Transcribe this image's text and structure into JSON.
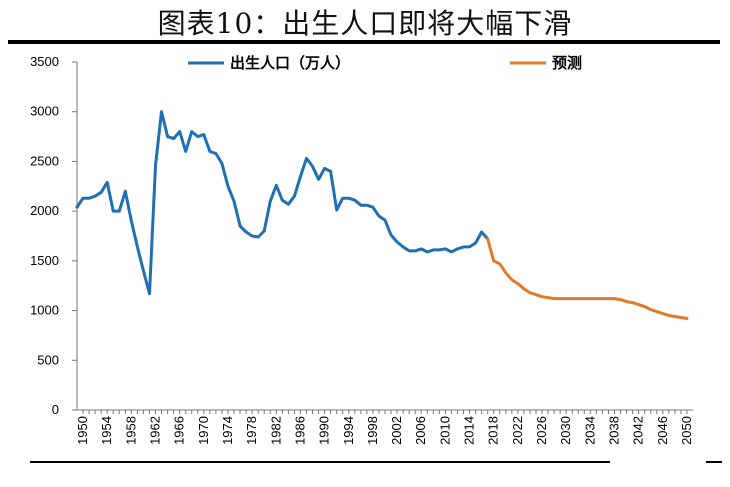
{
  "title": "图表10：出生人口即将大幅下滑",
  "chart_data": {
    "type": "line",
    "ylim": [
      0,
      3500
    ],
    "yticks": [
      0,
      500,
      1000,
      1500,
      2000,
      2500,
      3000,
      3500
    ],
    "xlim": [
      1949,
      2051
    ],
    "xticks": [
      1950,
      1954,
      1958,
      1962,
      1966,
      1970,
      1974,
      1978,
      1982,
      1986,
      1990,
      1994,
      1998,
      2002,
      2006,
      2010,
      2014,
      2018,
      2022,
      2026,
      2030,
      2034,
      2038,
      2042,
      2046,
      2050
    ],
    "grid": false,
    "legend": "top",
    "series": [
      {
        "name": "出生人口（万人）",
        "color": "#1f6fb2",
        "x": [
          1949,
          1950,
          1951,
          1952,
          1953,
          1954,
          1955,
          1956,
          1957,
          1958,
          1959,
          1960,
          1961,
          1962,
          1963,
          1964,
          1965,
          1966,
          1967,
          1968,
          1969,
          1970,
          1971,
          1972,
          1973,
          1974,
          1975,
          1976,
          1977,
          1978,
          1979,
          1980,
          1981,
          1982,
          1983,
          1984,
          1985,
          1986,
          1987,
          1988,
          1989,
          1990,
          1991,
          1992,
          1993,
          1994,
          1995,
          1996,
          1997,
          1998,
          1999,
          2000,
          2001,
          2002,
          2003,
          2004,
          2005,
          2006,
          2007,
          2008,
          2009,
          2010,
          2011,
          2012,
          2013,
          2014,
          2015,
          2016,
          2017
        ],
        "y": [
          2040,
          2130,
          2130,
          2150,
          2190,
          2290,
          2000,
          2000,
          2200,
          1900,
          1640,
          1400,
          1170,
          2460,
          3000,
          2750,
          2730,
          2800,
          2600,
          2800,
          2750,
          2770,
          2600,
          2580,
          2480,
          2250,
          2100,
          1850,
          1790,
          1750,
          1740,
          1800,
          2100,
          2260,
          2110,
          2070,
          2150,
          2350,
          2530,
          2450,
          2320,
          2430,
          2400,
          2010,
          2130,
          2130,
          2110,
          2060,
          2060,
          2040,
          1950,
          1910,
          1760,
          1690,
          1640,
          1600,
          1600,
          1620,
          1590,
          1610,
          1610,
          1620,
          1590,
          1620,
          1640,
          1640,
          1680,
          1790,
          1720
        ]
      },
      {
        "name": "预测",
        "color": "#e07b27",
        "x": [
          2017,
          2018,
          2019,
          2020,
          2021,
          2022,
          2023,
          2024,
          2025,
          2026,
          2027,
          2028,
          2029,
          2030,
          2031,
          2032,
          2033,
          2034,
          2035,
          2036,
          2037,
          2038,
          2039,
          2040,
          2041,
          2042,
          2043,
          2044,
          2045,
          2046,
          2047,
          2048,
          2049,
          2050
        ],
        "y": [
          1720,
          1500,
          1470,
          1380,
          1310,
          1270,
          1220,
          1180,
          1160,
          1140,
          1130,
          1120,
          1120,
          1120,
          1120,
          1120,
          1120,
          1120,
          1120,
          1120,
          1120,
          1120,
          1110,
          1090,
          1080,
          1060,
          1040,
          1010,
          990,
          970,
          950,
          940,
          930,
          920
        ]
      }
    ]
  }
}
